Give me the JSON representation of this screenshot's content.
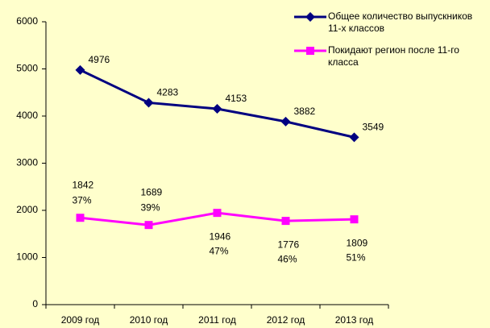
{
  "chart_data": {
    "type": "line",
    "categories": [
      "2009 год",
      "2010 год",
      "2011 год",
      "2012 год",
      "2013 год"
    ],
    "series": [
      {
        "name": "Общее количество выпускников 11-х классов",
        "color": "#000080",
        "marker": "diamond",
        "values": [
          4976,
          4283,
          4153,
          3882,
          3549
        ]
      },
      {
        "name": "Покидают регион после 11-го класса",
        "color": "#ff00ff",
        "marker": "square",
        "values": [
          1842,
          1689,
          1946,
          1776,
          1809
        ],
        "percent_labels": [
          "37%",
          "39%",
          "47%",
          "46%",
          "51%"
        ]
      }
    ],
    "ylim": [
      0,
      6000
    ],
    "yticks": [
      0,
      1000,
      2000,
      3000,
      4000,
      5000,
      6000
    ],
    "grid": false,
    "legend": "top-right"
  }
}
